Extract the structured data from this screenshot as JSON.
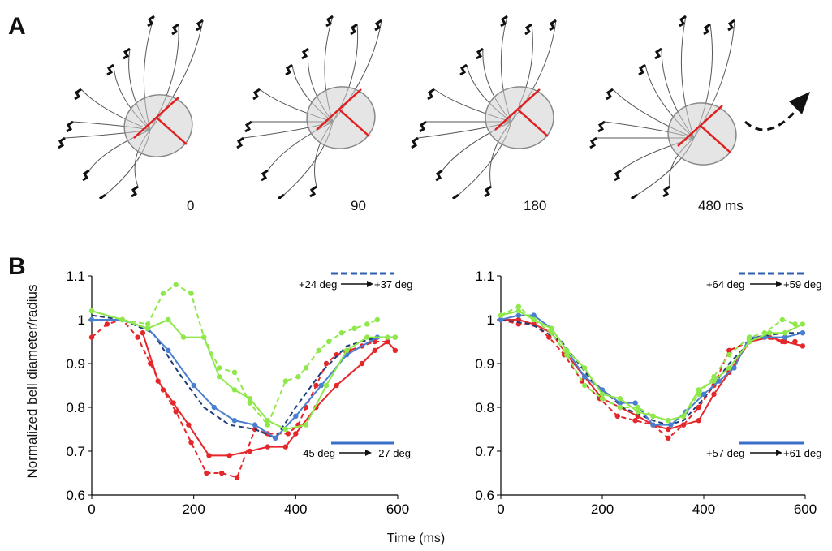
{
  "panel_a": {
    "letter": "A",
    "frames": [
      {
        "time": "0"
      },
      {
        "time": "90"
      },
      {
        "time": "180"
      },
      {
        "time": "480 ms"
      }
    ],
    "bell_color": "#cfcfcf",
    "axis_color": "#e02020"
  },
  "panel_b": {
    "letter": "B",
    "xlabel": "Time (ms)",
    "ylabel": "Normalized bell diameter/radius"
  },
  "chart_data": [
    {
      "type": "line",
      "xlim": [
        0,
        600
      ],
      "ylim": [
        0.6,
        1.1
      ],
      "xticks": [
        0,
        200,
        400,
        600
      ],
      "yticks": [
        0.6,
        0.7,
        0.8,
        0.9,
        1,
        1.1
      ],
      "ytick_labels": [
        "0.6",
        "0.7",
        "0.8",
        "0.9",
        "1",
        "1.1"
      ],
      "annotations": [
        {
          "text": "+24 deg",
          "text2": "+37 deg",
          "color": "#2f5fb3",
          "style": "dashed"
        },
        {
          "text": "–45 deg",
          "text2": "–27 deg",
          "color": "#3a6ec8",
          "style": "solid"
        }
      ],
      "series": [
        {
          "color": "#e5262a",
          "style": "dashed",
          "markers": true,
          "x": [
            0,
            30,
            60,
            90,
            115,
            140,
            165,
            195,
            225,
            255,
            285,
            320,
            345,
            385,
            405,
            420,
            440,
            460,
            480,
            505,
            530,
            555,
            580
          ],
          "y": [
            0.96,
            0.99,
            1.0,
            0.96,
            0.9,
            0.84,
            0.79,
            0.72,
            0.65,
            0.65,
            0.64,
            0.75,
            0.74,
            0.74,
            0.76,
            0.8,
            0.85,
            0.9,
            0.92,
            0.93,
            0.94,
            0.95,
            0.95
          ]
        },
        {
          "color": "#e5262a",
          "style": "solid",
          "markers": true,
          "x": [
            100,
            130,
            160,
            190,
            230,
            270,
            310,
            345,
            380,
            400,
            440,
            480,
            530,
            555,
            580,
            595
          ],
          "y": [
            0.97,
            0.86,
            0.81,
            0.76,
            0.69,
            0.69,
            0.7,
            0.71,
            0.71,
            0.74,
            0.8,
            0.85,
            0.9,
            0.93,
            0.95,
            0.93
          ]
        },
        {
          "color": "#1e3f7a",
          "style": "dashed",
          "markers": false,
          "x": [
            0,
            60,
            120,
            170,
            220,
            270,
            320,
            360,
            400,
            450,
            500,
            560,
            595
          ],
          "y": [
            1.01,
            1.0,
            0.97,
            0.88,
            0.8,
            0.76,
            0.75,
            0.73,
            0.8,
            0.88,
            0.94,
            0.96,
            0.96
          ]
        },
        {
          "color": "#4a7fd0",
          "style": "solid",
          "markers": true,
          "x": [
            0,
            60,
            110,
            150,
            200,
            240,
            280,
            320,
            360,
            400,
            450,
            500,
            560,
            595
          ],
          "y": [
            1.0,
            1.0,
            0.98,
            0.93,
            0.85,
            0.8,
            0.77,
            0.76,
            0.73,
            0.78,
            0.85,
            0.92,
            0.96,
            0.96
          ]
        },
        {
          "color": "#8ee84a",
          "style": "dashed",
          "markers": true,
          "x": [
            0,
            60,
            110,
            140,
            165,
            195,
            220,
            250,
            280,
            310,
            345,
            380,
            405,
            420,
            445,
            465,
            490,
            515,
            540,
            560
          ],
          "y": [
            1.02,
            1.0,
            0.99,
            1.06,
            1.08,
            1.06,
            0.96,
            0.89,
            0.88,
            0.81,
            0.76,
            0.86,
            0.87,
            0.89,
            0.93,
            0.95,
            0.97,
            0.98,
            0.99,
            1.0
          ]
        },
        {
          "color": "#8ee84a",
          "style": "solid",
          "markers": true,
          "x": [
            0,
            60,
            110,
            150,
            180,
            220,
            250,
            280,
            310,
            345,
            380,
            420,
            460,
            500,
            540,
            580,
            595
          ],
          "y": [
            1.02,
            1.0,
            0.98,
            1.0,
            0.96,
            0.96,
            0.87,
            0.84,
            0.82,
            0.77,
            0.75,
            0.76,
            0.85,
            0.93,
            0.96,
            0.96,
            0.96
          ]
        }
      ]
    },
    {
      "type": "line",
      "xlim": [
        0,
        600
      ],
      "ylim": [
        0.6,
        1.1
      ],
      "xticks": [
        0,
        200,
        400,
        600
      ],
      "yticks": [
        0.6,
        0.7,
        0.8,
        0.9,
        1,
        1.1
      ],
      "ytick_labels": [
        "0.6",
        "0.7",
        "0.8",
        "0.9",
        "1",
        "1.1"
      ],
      "annotations": [
        {
          "text": "+64 deg",
          "text2": "+59 deg",
          "color": "#2f5fb3",
          "style": "dashed"
        },
        {
          "text": "+57 deg",
          "text2": "+61 deg",
          "color": "#3a6ec8",
          "style": "solid"
        }
      ],
      "series": [
        {
          "color": "#e5262a",
          "style": "dashed",
          "markers": true,
          "x": [
            0,
            35,
            65,
            95,
            125,
            160,
            195,
            230,
            265,
            300,
            330,
            360,
            390,
            420,
            450,
            490,
            520,
            555,
            580
          ],
          "y": [
            1.0,
            0.99,
            0.99,
            0.96,
            0.92,
            0.86,
            0.82,
            0.78,
            0.77,
            0.76,
            0.73,
            0.76,
            0.8,
            0.85,
            0.93,
            0.95,
            0.96,
            0.95,
            0.95
          ]
        },
        {
          "color": "#e5262a",
          "style": "solid",
          "markers": true,
          "x": [
            0,
            35,
            65,
            100,
            130,
            165,
            200,
            235,
            270,
            300,
            330,
            360,
            390,
            420,
            450,
            490,
            530,
            560,
            595
          ],
          "y": [
            1.0,
            1.0,
            0.99,
            0.97,
            0.92,
            0.87,
            0.82,
            0.8,
            0.78,
            0.76,
            0.75,
            0.76,
            0.77,
            0.83,
            0.88,
            0.95,
            0.96,
            0.95,
            0.94
          ]
        },
        {
          "color": "#1e3f7a",
          "style": "dashed",
          "markers": false,
          "x": [
            0,
            60,
            120,
            180,
            240,
            300,
            330,
            360,
            400,
            450,
            500,
            560,
            595
          ],
          "y": [
            1.0,
            0.99,
            0.95,
            0.86,
            0.8,
            0.77,
            0.76,
            0.77,
            0.82,
            0.9,
            0.96,
            0.97,
            0.97
          ]
        },
        {
          "color": "#4a7fd0",
          "style": "solid",
          "markers": true,
          "x": [
            0,
            35,
            65,
            100,
            130,
            165,
            200,
            235,
            265,
            300,
            335,
            365,
            400,
            430,
            460,
            490,
            520,
            560,
            595
          ],
          "y": [
            1.0,
            1.01,
            1.01,
            0.98,
            0.93,
            0.87,
            0.84,
            0.81,
            0.81,
            0.76,
            0.76,
            0.79,
            0.83,
            0.86,
            0.89,
            0.96,
            0.96,
            0.96,
            0.97
          ]
        },
        {
          "color": "#8ee84a",
          "style": "dashed",
          "markers": true,
          "x": [
            0,
            35,
            65,
            100,
            130,
            165,
            200,
            235,
            270,
            300,
            330,
            360,
            390,
            420,
            450,
            490,
            520,
            555,
            580
          ],
          "y": [
            1.01,
            1.03,
            1.0,
            0.97,
            0.92,
            0.85,
            0.82,
            0.8,
            0.8,
            0.78,
            0.77,
            0.78,
            0.83,
            0.87,
            0.92,
            0.96,
            0.97,
            1.0,
            0.99
          ]
        },
        {
          "color": "#8ee84a",
          "style": "solid",
          "markers": true,
          "x": [
            0,
            35,
            65,
            100,
            130,
            165,
            200,
            235,
            270,
            300,
            330,
            360,
            390,
            420,
            450,
            490,
            530,
            560,
            595
          ],
          "y": [
            1.01,
            1.02,
            1.0,
            0.98,
            0.93,
            0.89,
            0.83,
            0.82,
            0.79,
            0.78,
            0.77,
            0.78,
            0.84,
            0.86,
            0.89,
            0.95,
            0.97,
            0.97,
            0.99
          ]
        }
      ]
    }
  ]
}
